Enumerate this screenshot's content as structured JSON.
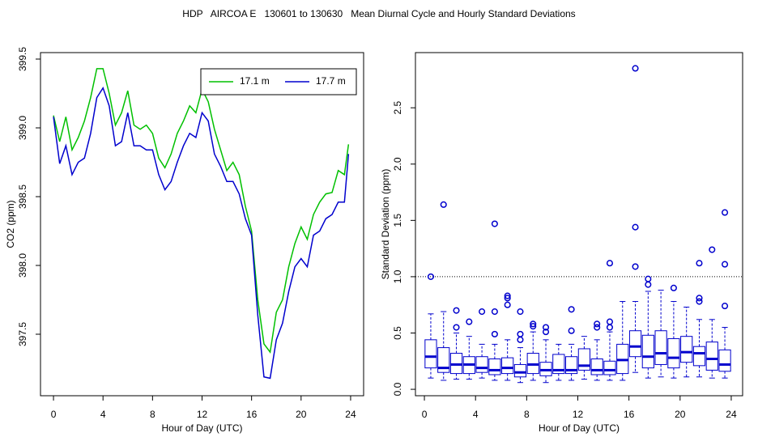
{
  "title": "HDP   AIRCOA E   130601 to 130630   Mean Diurnal Cycle and Hourly Standard Deviations",
  "chart_data": [
    {
      "type": "line",
      "xlabel": "Hour of Day (UTC)",
      "ylabel": "CO2 (ppm)",
      "x": [
        0,
        0.5,
        1,
        1.5,
        2,
        2.5,
        3,
        3.5,
        4,
        4.5,
        5,
        5.5,
        6,
        6.5,
        7,
        7.5,
        8,
        8.5,
        9,
        9.5,
        10,
        10.5,
        11,
        11.5,
        12,
        12.5,
        13,
        13.5,
        14,
        14.5,
        15,
        15.5,
        16,
        16.5,
        17,
        17.5,
        18,
        18.5,
        19,
        19.5,
        20,
        20.5,
        21,
        21.5,
        22,
        22.5,
        23,
        23.5,
        23.83
      ],
      "series": [
        {
          "name": "17.1 m",
          "color": "#00c000",
          "values": [
            399.09,
            398.9,
            399.08,
            398.84,
            398.93,
            399.05,
            399.22,
            399.43,
            399.43,
            399.25,
            399.02,
            399.11,
            399.27,
            399.02,
            398.99,
            399.02,
            398.96,
            398.78,
            398.71,
            398.81,
            398.96,
            399.05,
            399.16,
            399.11,
            399.28,
            399.19,
            398.99,
            398.84,
            398.69,
            398.75,
            398.66,
            398.43,
            398.25,
            397.75,
            397.43,
            397.37,
            397.66,
            397.75,
            397.99,
            398.16,
            398.28,
            398.19,
            398.37,
            398.46,
            398.52,
            398.53,
            398.69,
            398.66,
            398.88
          ]
        },
        {
          "name": "17.7 m",
          "color": "#0000cd",
          "values": [
            399.08,
            398.74,
            398.87,
            398.66,
            398.75,
            398.78,
            398.96,
            399.22,
            399.29,
            399.16,
            398.87,
            398.9,
            399.11,
            398.87,
            398.87,
            398.84,
            398.84,
            398.66,
            398.55,
            398.61,
            398.75,
            398.87,
            398.96,
            398.93,
            399.11,
            399.05,
            398.81,
            398.72,
            398.61,
            398.61,
            398.52,
            398.34,
            398.22,
            397.64,
            397.19,
            397.18,
            397.46,
            397.58,
            397.81,
            397.99,
            398.05,
            397.99,
            398.22,
            398.25,
            398.34,
            398.37,
            398.46,
            398.46,
            398.81
          ]
        }
      ],
      "xlim": [
        -1.05,
        25.05
      ],
      "xticks": [
        0,
        4,
        8,
        12,
        16,
        20,
        24
      ],
      "ylim": [
        397.053,
        399.547
      ],
      "yticks": [
        397.5,
        {
          "value": 398,
          "label": "398.0"
        },
        398.5,
        {
          "value": 399,
          "label": "399.0"
        },
        399.5
      ],
      "legend": "topright"
    },
    {
      "type": "box",
      "xlabel": "Hour of Day (UTC)",
      "ylabel": "Standard Deviation (ppm)",
      "color": "#0000cd",
      "x": [
        0.5,
        1.5,
        2.5,
        3.5,
        4.5,
        5.5,
        6.5,
        7.5,
        8.5,
        9.5,
        10.5,
        11.5,
        12.5,
        13.5,
        14.5,
        15.5,
        16.5,
        17.5,
        18.5,
        19.5,
        20.5,
        21.5,
        22.5,
        23.5
      ],
      "whisker_low": [
        0.1,
        0.08,
        0.09,
        0.09,
        0.1,
        0.08,
        0.08,
        0.06,
        0.08,
        0.06,
        0.08,
        0.08,
        0.09,
        0.08,
        0.08,
        0.08,
        0.15,
        0.1,
        0.11,
        0.1,
        0.11,
        0.11,
        0.1,
        0.1
      ],
      "q1": [
        0.19,
        0.15,
        0.14,
        0.14,
        0.15,
        0.13,
        0.14,
        0.11,
        0.14,
        0.12,
        0.14,
        0.14,
        0.17,
        0.13,
        0.13,
        0.14,
        0.29,
        0.19,
        0.22,
        0.19,
        0.24,
        0.21,
        0.17,
        0.16
      ],
      "median": [
        0.29,
        0.19,
        0.22,
        0.22,
        0.19,
        0.17,
        0.19,
        0.15,
        0.22,
        0.17,
        0.17,
        0.17,
        0.21,
        0.17,
        0.17,
        0.26,
        0.38,
        0.29,
        0.32,
        0.28,
        0.33,
        0.32,
        0.27,
        0.22
      ],
      "q3": [
        0.44,
        0.37,
        0.32,
        0.29,
        0.29,
        0.27,
        0.28,
        0.22,
        0.32,
        0.24,
        0.31,
        0.29,
        0.36,
        0.27,
        0.25,
        0.4,
        0.52,
        0.48,
        0.52,
        0.45,
        0.47,
        0.38,
        0.42,
        0.35
      ],
      "whisker_high": [
        0.67,
        0.69,
        0.5,
        0.47,
        0.4,
        0.4,
        0.44,
        0.37,
        0.51,
        0.44,
        0.4,
        0.4,
        0.47,
        0.44,
        0.51,
        0.78,
        0.78,
        0.87,
        0.88,
        0.78,
        0.73,
        0.62,
        0.62,
        0.55
      ],
      "outliers": [
        [
          1.0
        ],
        [
          1.64
        ],
        [
          0.7,
          0.55
        ],
        [
          0.6
        ],
        [
          0.69
        ],
        [
          1.47,
          0.69,
          0.49
        ],
        [
          0.83,
          0.81,
          0.75
        ],
        [
          0.69,
          0.49,
          0.44
        ],
        [
          0.58,
          0.56
        ],
        [
          0.55,
          0.51
        ],
        [],
        [
          0.71,
          0.52
        ],
        [],
        [
          0.58,
          0.55
        ],
        [
          1.12,
          0.6,
          0.55
        ],
        [],
        [
          2.85,
          1.44,
          1.09
        ],
        [
          0.98,
          0.93
        ],
        [],
        [
          0.9
        ],
        [],
        [
          1.12,
          0.81,
          0.78
        ],
        [
          1.24
        ],
        [
          1.57,
          1.11,
          0.74
        ]
      ],
      "reference_line": 1,
      "xlim": [
        -0.7,
        24.89
      ],
      "xticks": [
        0,
        4,
        8,
        12,
        16,
        20,
        24
      ],
      "ylim": [
        -0.057,
        2.99
      ],
      "yticks": [
        {
          "value": 0,
          "label": "0.0"
        },
        0.5,
        {
          "value": 1,
          "label": "1.0"
        },
        1.5,
        {
          "value": 2,
          "label": "2.0"
        },
        2.5
      ]
    }
  ]
}
